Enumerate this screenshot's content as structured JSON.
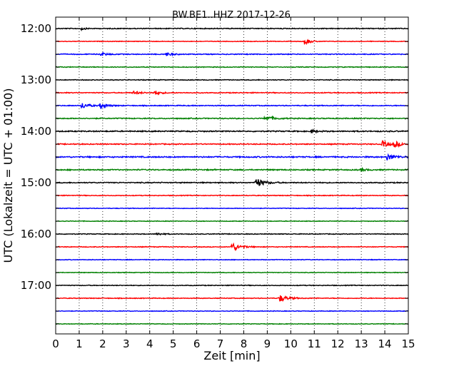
{
  "chart_data": {
    "type": "line",
    "title": "BW.BE1..HHZ 2017-12-26",
    "xlabel": "Zeit  [min]",
    "ylabel": "UTC (Lokalzeit = UTC + 01:00)",
    "xlim": [
      0,
      15
    ],
    "x_ticks": [
      0,
      1,
      2,
      3,
      4,
      5,
      6,
      7,
      8,
      9,
      10,
      11,
      12,
      13,
      14,
      15
    ],
    "y_tick_labels": [
      "12:00",
      "13:00",
      "14:00",
      "15:00",
      "16:00",
      "17:00"
    ],
    "row_interval_minutes": 15,
    "grid": "vertical dotted at each minute",
    "colors_cycle": [
      "#000000",
      "#ff0000",
      "#0000ff",
      "#008000"
    ],
    "series": [
      {
        "start": "12:00",
        "color": "#000000",
        "noise": 0.7,
        "events": [
          {
            "x": 1.1,
            "amp": 2.2,
            "dur": 0.2
          }
        ]
      },
      {
        "start": "12:15",
        "color": "#ff0000",
        "noise": 0.5,
        "events": [
          {
            "x": 10.6,
            "amp": 5.5,
            "dur": 0.3
          }
        ]
      },
      {
        "start": "12:30",
        "color": "#0000ff",
        "noise": 0.7,
        "events": [
          {
            "x": 1.9,
            "amp": 2.5,
            "dur": 0.4
          },
          {
            "x": 4.7,
            "amp": 2.5,
            "dur": 0.4
          }
        ]
      },
      {
        "start": "12:45",
        "color": "#008000",
        "noise": 0.6,
        "events": []
      },
      {
        "start": "13:00",
        "color": "#000000",
        "noise": 0.6,
        "events": []
      },
      {
        "start": "13:15",
        "color": "#ff0000",
        "noise": 0.7,
        "events": [
          {
            "x": 3.3,
            "amp": 2.5,
            "dur": 0.4
          },
          {
            "x": 4.2,
            "amp": 2.8,
            "dur": 0.4
          }
        ]
      },
      {
        "start": "13:30",
        "color": "#0000ff",
        "noise": 0.7,
        "events": [
          {
            "x": 1.1,
            "amp": 4.5,
            "dur": 0.4
          },
          {
            "x": 1.9,
            "amp": 4.5,
            "dur": 0.4
          }
        ]
      },
      {
        "start": "13:45",
        "color": "#008000",
        "noise": 0.8,
        "events": [
          {
            "x": 8.9,
            "amp": 4.0,
            "dur": 0.5
          }
        ]
      },
      {
        "start": "14:00",
        "color": "#000000",
        "noise": 0.9,
        "events": [
          {
            "x": 10.9,
            "amp": 2.5,
            "dur": 0.3
          }
        ]
      },
      {
        "start": "14:15",
        "color": "#ff0000",
        "noise": 0.8,
        "events": [
          {
            "x": 13.9,
            "amp": 4.5,
            "dur": 0.4
          },
          {
            "x": 14.4,
            "amp": 4.0,
            "dur": 0.4
          }
        ]
      },
      {
        "start": "14:30",
        "color": "#0000ff",
        "noise": 1.0,
        "events": [
          {
            "x": 14.1,
            "amp": 4.5,
            "dur": 0.5
          }
        ]
      },
      {
        "start": "14:45",
        "color": "#008000",
        "noise": 0.9,
        "events": [
          {
            "x": 13.0,
            "amp": 2.0,
            "dur": 0.3
          }
        ]
      },
      {
        "start": "15:00",
        "color": "#000000",
        "noise": 0.8,
        "events": [
          {
            "x": 8.5,
            "amp": 7.0,
            "dur": 0.5
          }
        ]
      },
      {
        "start": "15:15",
        "color": "#ff0000",
        "noise": 0.6,
        "events": []
      },
      {
        "start": "15:30",
        "color": "#0000ff",
        "noise": 0.5,
        "events": []
      },
      {
        "start": "15:45",
        "color": "#008000",
        "noise": 0.5,
        "events": []
      },
      {
        "start": "16:00",
        "color": "#000000",
        "noise": 0.6,
        "events": [
          {
            "x": 4.3,
            "amp": 2.2,
            "dur": 0.3
          }
        ]
      },
      {
        "start": "16:15",
        "color": "#ff0000",
        "noise": 0.6,
        "events": [
          {
            "x": 7.5,
            "amp": 6.0,
            "dur": 0.5
          }
        ]
      },
      {
        "start": "16:30",
        "color": "#0000ff",
        "noise": 0.5,
        "events": []
      },
      {
        "start": "16:45",
        "color": "#008000",
        "noise": 0.5,
        "events": []
      },
      {
        "start": "17:00",
        "color": "#000000",
        "noise": 0.6,
        "events": []
      },
      {
        "start": "17:15",
        "color": "#ff0000",
        "noise": 0.6,
        "events": [
          {
            "x": 9.5,
            "amp": 5.5,
            "dur": 0.5
          }
        ]
      },
      {
        "start": "17:30",
        "color": "#0000ff",
        "noise": 0.5,
        "events": []
      },
      {
        "start": "17:45",
        "color": "#008000",
        "noise": 0.5,
        "events": []
      }
    ]
  }
}
